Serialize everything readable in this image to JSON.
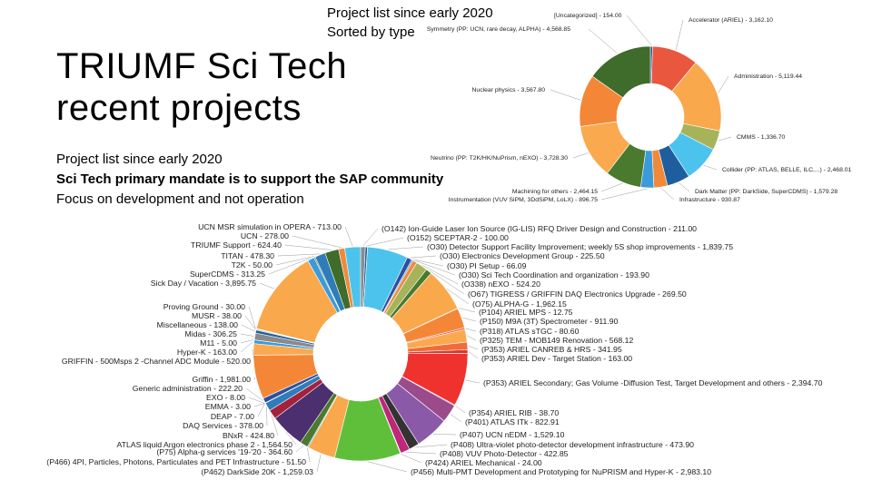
{
  "slide": {
    "title_line1": "TRIUMF Sci Tech",
    "title_line2": "recent projects",
    "top_line1": "Project list since early 2020",
    "top_line2": "Sorted by type",
    "body_line1": "Project list since early 2020",
    "body_line2": "Sci Tech primary mandate is to support the SAP community",
    "body_line3": "Focus on development and not operation"
  },
  "chart_data": [
    {
      "type": "pie",
      "title": "",
      "donut": true,
      "slices": [
        {
          "label": "[Uncategorized] - 154.00",
          "value": 154.0,
          "color": "#2e4fa0"
        },
        {
          "label": "Accelerator (ARIEL) - 3,162.10",
          "value": 3162.1,
          "color": "#e9573f"
        },
        {
          "label": "Administration - 5,119.44",
          "value": 5119.44,
          "color": "#f9a84c"
        },
        {
          "label": "CMMS - 1,336.70",
          "value": 1336.7,
          "color": "#a6b35a"
        },
        {
          "label": "Collider (PP: ATLAS, BELLE, ILC,...) - 2,468.01",
          "value": 2468.01,
          "color": "#4cc3ec"
        },
        {
          "label": "Dark Matter (PP: DarkSide, SuperCDMS) - 1,579.28",
          "value": 1579.28,
          "color": "#1f5e9e"
        },
        {
          "label": "Infrastructure - 930.87",
          "value": 930.87,
          "color": "#f08a3a"
        },
        {
          "label": "Instrumentation (VUV SiPM, 3DdSiPM, LoLX) - 896.75",
          "value": 896.75,
          "color": "#3b9ad9"
        },
        {
          "label": "Machining for others - 2,464.15",
          "value": 2464.15,
          "color": "#4a7a2e"
        },
        {
          "label": "Neutrino (PP: T2K/HK/NuPrism, nEXO) - 3,728.30",
          "value": 3728.3,
          "color": "#fba94f"
        },
        {
          "label": "Nuclear physics - 3,567.80",
          "value": 3567.8,
          "color": "#f48737"
        },
        {
          "label": "Symmetry (PP: UCN, rare decay, ALPHA) - 4,568.85",
          "value": 4568.85,
          "color": "#3f6b2b"
        }
      ]
    },
    {
      "type": "pie",
      "title": "",
      "donut": true,
      "slices": [
        {
          "label": "(O142)  Ion-Guide Laser Ion Source (IG-LIS) RFQ Driver Design and Construction - 211.00",
          "value": 211.0,
          "color": "#8a8a8a"
        },
        {
          "label": "(O152) SCEPTAR-2 - 100.00",
          "value": 100.0,
          "color": "#1f5e9e"
        },
        {
          "label": "(O30) Detector Support Facility Improvement; weekly 5S shop improvements - 1,839.75",
          "value": 1839.75,
          "color": "#4cc3ec"
        },
        {
          "label": "(O30) Electronics Development Group - 225.50",
          "value": 225.5,
          "color": "#2e4fa0"
        },
        {
          "label": "(O30) PI Setup - 66.09",
          "value": 66.09,
          "color": "#3b9ad9"
        },
        {
          "label": "(O30) Sci Tech Coordination and organization - 193.90",
          "value": 193.9,
          "color": "#f08a3a"
        },
        {
          "label": "(O338) nEXO - 524.20",
          "value": 524.2,
          "color": "#a6b35a"
        },
        {
          "label": "(O67) TIGRESS / GRIFFIN DAQ Electronics Upgrade - 269.50",
          "value": 269.5,
          "color": "#4a7a2e"
        },
        {
          "label": "(O75) ALPHA-G - 1,962.15",
          "value": 1962.15,
          "color": "#f9a84c"
        },
        {
          "label": "(P104) ARIEL MPS - 12.75",
          "value": 12.75,
          "color": "#c0392b"
        },
        {
          "label": "(P150) M9A (3T) Spectrometer - 911.90",
          "value": 911.9,
          "color": "#f48737"
        },
        {
          "label": "(P318) ATLAS sTGC - 80.60",
          "value": 80.6,
          "color": "#e9573f"
        },
        {
          "label": "(P325) TEM - MOB149 Renovation - 568.12",
          "value": 568.12,
          "color": "#fba94f"
        },
        {
          "label": "(P353) ARIEL CANREB & HRS - 341.95",
          "value": 341.95,
          "color": "#f26b3a"
        },
        {
          "label": "(P353) ARIEL Dev - Target Station - 163.00",
          "value": 163.0,
          "color": "#d43a2f"
        },
        {
          "label": "(P353) ARIEL Secondary;  Gas Volume -Diffusion Test,  Target Development and others - 2,394.70",
          "value": 2394.7,
          "color": "#f0322f"
        },
        {
          "label": "(P354) ARIEL RIB - 38.70",
          "value": 38.7,
          "color": "#b23a7a"
        },
        {
          "label": "(P401) ATLAS ITk - 822.91",
          "value": 822.91,
          "color": "#9b4a8c"
        },
        {
          "label": "(P407) UCN nEDM - 1,529.10",
          "value": 1529.1,
          "color": "#8a5aa8"
        },
        {
          "label": "(P408) Ultra-violet photo-detector development infrastructure - 473.90",
          "value": 473.9,
          "color": "#333333"
        },
        {
          "label": "(P408) VUV Photo-Detector - 422.85",
          "value": 422.85,
          "color": "#c0267a"
        },
        {
          "label": "(P424) ARIEL Mechanical - 24.00",
          "value": 24.0,
          "color": "#e34b9a"
        },
        {
          "label": "(P456) Multi-PMT Development and Prototyping for NuPRISM and Hyper-K - 2,983.10",
          "value": 2983.1,
          "color": "#5fbf3a"
        },
        {
          "label": "(P462) DarkSide 20K - 1,259.03",
          "value": 1259.03,
          "color": "#f9a84c"
        },
        {
          "label": "(P466) 4PI, Particles, Photons, Particulates and PET Infrastructure - 51.50",
          "value": 51.5,
          "color": "#3b9ad9"
        },
        {
          "label": "(P75) Alpha-g services '19-'20 - 364.60",
          "value": 364.6,
          "color": "#4a7a2e"
        },
        {
          "label": "ATLAS liquid Argon electronics phase 2 - 1,564.50",
          "value": 1564.5,
          "color": "#4b2f6e"
        },
        {
          "label": "BNxR - 424.80",
          "value": 424.8,
          "color": "#a3213b"
        },
        {
          "label": "DAQ Services - 378.00",
          "value": 378.0,
          "color": "#2e7db8"
        },
        {
          "label": "DEAP - 7.00",
          "value": 7.0,
          "color": "#1f5e9e"
        },
        {
          "label": "EMMA - 3.00",
          "value": 3.0,
          "color": "#3f6b2b"
        },
        {
          "label": "EXO - 8.00",
          "value": 8.0,
          "color": "#4cc3ec"
        },
        {
          "label": "Generic administration - 222.20",
          "value": 222.2,
          "color": "#2e4fa0"
        },
        {
          "label": "Griffin - 1,981.00",
          "value": 1981.0,
          "color": "#f48737"
        },
        {
          "label": "GRIFFIN - 500Msps 2 -Channel ADC Module - 520.00",
          "value": 520.0,
          "color": "#fba94f"
        },
        {
          "label": "Hyper-K - 163.00",
          "value": 163.0,
          "color": "#3b9ad9"
        },
        {
          "label": "M11 - 5.00",
          "value": 5.0,
          "color": "#2e4fa0"
        },
        {
          "label": "Midas - 306.25",
          "value": 306.25,
          "color": "#8a8a8a"
        },
        {
          "label": "Miscellaneous - 138.00",
          "value": 138.0,
          "color": "#1f5e9e"
        },
        {
          "label": "MUSR - 38.00",
          "value": 38.0,
          "color": "#4a7a2e"
        },
        {
          "label": "Proving Ground - 30.00",
          "value": 30.0,
          "color": "#a6b35a"
        },
        {
          "label": "Sick Day / Vacation - 3,895.75",
          "value": 3895.75,
          "color": "#f9a84c"
        },
        {
          "label": "SuperCDMS - 313.25",
          "value": 313.25,
          "color": "#3b9ad9"
        },
        {
          "label": "T2K - 50.00",
          "value": 50.0,
          "color": "#3f6b2b"
        },
        {
          "label": "TITAN - 478.30",
          "value": 478.3,
          "color": "#2e7db8"
        },
        {
          "label": "TRIUMF Support - 624.40",
          "value": 624.4,
          "color": "#3f6b2b"
        },
        {
          "label": "UCN - 278.00",
          "value": 278.0,
          "color": "#f08a3a"
        },
        {
          "label": "UCN MSR simulation in OPERA - 713.00",
          "value": 713.0,
          "color": "#4cc3ec"
        }
      ]
    }
  ]
}
